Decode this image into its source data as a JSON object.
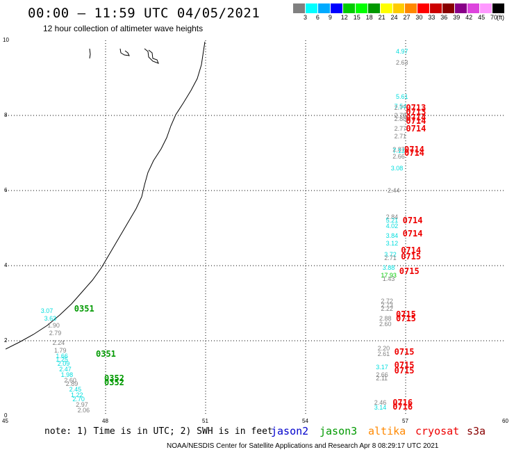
{
  "header": {
    "title": "00:00 — 11:59 UTC 04/05/2021",
    "subtitle": "12 hour collection of altimeter wave heights"
  },
  "legend": {
    "colors": [
      "#808080",
      "#00ffff",
      "#00aaff",
      "#0000ff",
      "#00cc00",
      "#00ff00",
      "#009900",
      "#ffff00",
      "#ffcc00",
      "#ff8800",
      "#ff0000",
      "#cc0000",
      "#880000",
      "#880088",
      "#dd44dd",
      "#ff99ff",
      "#000000"
    ],
    "labels": [
      "3",
      "6",
      "9",
      "12",
      "15",
      "18",
      "21",
      "24",
      "27",
      "30",
      "33",
      "36",
      "39",
      "42",
      "45",
      "70"
    ],
    "unit": "(ft)"
  },
  "axes": {
    "x_ticks": [
      "45",
      "48",
      "51",
      "54",
      "57",
      "60"
    ],
    "y_ticks": [
      "0",
      "2",
      "4",
      "6",
      "8",
      "10"
    ]
  },
  "footer": {
    "note": "note: 1) Time is in UTC; 2) SWH is in feet",
    "missions": [
      {
        "name": "jason2",
        "color": "#0000cc"
      },
      {
        "name": "jason3",
        "color": "#009900"
      },
      {
        "name": "altika",
        "color": "#ff8800"
      },
      {
        "name": "cryosat",
        "color": "#ee0000"
      },
      {
        "name": "s3a",
        "color": "#880000"
      }
    ],
    "credit": "NOAA/NESDIS Center for Satellite Applications and Research   Apr  8 08:29:17 UTC 2021"
  },
  "chart_data": {
    "type": "scatter",
    "xlim": [
      45,
      60
    ],
    "ylim": [
      0,
      10
    ],
    "grid": true,
    "observations": [
      {
        "lon": 57.0,
        "lat": 9.7,
        "v": "4.97",
        "c": "#00dddd"
      },
      {
        "lon": 57.0,
        "lat": 9.4,
        "v": "2.63",
        "c": "#808080"
      },
      {
        "lon": 57.0,
        "lat": 8.5,
        "v": "5.61",
        "c": "#00dddd"
      },
      {
        "lon": 56.95,
        "lat": 8.25,
        "v": "7.54",
        "c": "#00dddd"
      },
      {
        "lon": 56.95,
        "lat": 8.2,
        "v": "2.77",
        "c": "#808080"
      },
      {
        "lon": 56.95,
        "lat": 8.0,
        "v": "2.78",
        "c": "#808080"
      },
      {
        "lon": 56.95,
        "lat": 7.9,
        "v": "2.88",
        "c": "#808080"
      },
      {
        "lon": 56.95,
        "lat": 7.65,
        "v": "2.77",
        "c": "#808080"
      },
      {
        "lon": 56.95,
        "lat": 7.45,
        "v": "2.71",
        "c": "#808080"
      },
      {
        "lon": 56.9,
        "lat": 7.1,
        "v": "2.87",
        "c": "#808080"
      },
      {
        "lon": 56.9,
        "lat": 7.05,
        "v": "7.13",
        "c": "#00dddd"
      },
      {
        "lon": 56.9,
        "lat": 6.9,
        "v": "2.66",
        "c": "#808080"
      },
      {
        "lon": 56.85,
        "lat": 6.6,
        "v": "3.08",
        "c": "#00dddd"
      },
      {
        "lon": 56.75,
        "lat": 6.0,
        "v": "2.44",
        "c": "#808080"
      },
      {
        "lon": 56.7,
        "lat": 5.3,
        "v": "2.84",
        "c": "#808080"
      },
      {
        "lon": 56.7,
        "lat": 5.2,
        "v": "5.21",
        "c": "#00dddd"
      },
      {
        "lon": 56.7,
        "lat": 5.05,
        "v": "4.02",
        "c": "#00dddd"
      },
      {
        "lon": 56.7,
        "lat": 4.8,
        "v": "3.84",
        "c": "#00dddd"
      },
      {
        "lon": 56.7,
        "lat": 4.6,
        "v": "3.12",
        "c": "#00dddd"
      },
      {
        "lon": 56.65,
        "lat": 4.3,
        "v": "3.72",
        "c": "#00dddd"
      },
      {
        "lon": 56.65,
        "lat": 4.2,
        "v": "2.71",
        "c": "#808080"
      },
      {
        "lon": 56.6,
        "lat": 3.95,
        "v": "3.88",
        "c": "#00dddd"
      },
      {
        "lon": 56.55,
        "lat": 3.75,
        "v": "17.93",
        "c": "#00cc00"
      },
      {
        "lon": 56.6,
        "lat": 3.65,
        "v": "1.43",
        "c": "#808080"
      },
      {
        "lon": 56.55,
        "lat": 3.05,
        "v": "2.72",
        "c": "#808080"
      },
      {
        "lon": 56.55,
        "lat": 2.95,
        "v": "2.73",
        "c": "#808080"
      },
      {
        "lon": 56.55,
        "lat": 2.85,
        "v": "2.22",
        "c": "#808080"
      },
      {
        "lon": 56.5,
        "lat": 2.6,
        "v": "2.88",
        "c": "#808080"
      },
      {
        "lon": 56.5,
        "lat": 2.45,
        "v": "2.60",
        "c": "#808080"
      },
      {
        "lon": 56.45,
        "lat": 1.8,
        "v": "2.20",
        "c": "#808080"
      },
      {
        "lon": 56.45,
        "lat": 1.65,
        "v": "2.61",
        "c": "#808080"
      },
      {
        "lon": 56.4,
        "lat": 1.3,
        "v": "3.17",
        "c": "#00dddd"
      },
      {
        "lon": 56.4,
        "lat": 1.1,
        "v": "2.66",
        "c": "#808080"
      },
      {
        "lon": 56.4,
        "lat": 1.0,
        "v": "2.11",
        "c": "#808080"
      },
      {
        "lon": 56.35,
        "lat": 0.35,
        "v": "2.46",
        "c": "#808080"
      },
      {
        "lon": 56.35,
        "lat": 0.22,
        "v": "3.14",
        "c": "#00dddd"
      },
      {
        "lon": 46.35,
        "lat": 2.8,
        "v": "3.07",
        "c": "#00dddd"
      },
      {
        "lon": 46.45,
        "lat": 2.6,
        "v": "3.63",
        "c": "#00dddd"
      },
      {
        "lon": 46.55,
        "lat": 2.4,
        "v": "1.90",
        "c": "#808080"
      },
      {
        "lon": 46.6,
        "lat": 2.2,
        "v": "2.79",
        "c": "#808080"
      },
      {
        "lon": 46.7,
        "lat": 1.95,
        "v": "2.24",
        "c": "#808080"
      },
      {
        "lon": 46.75,
        "lat": 1.75,
        "v": "1.79",
        "c": "#808080"
      },
      {
        "lon": 46.8,
        "lat": 1.6,
        "v": "1.66",
        "c": "#00dddd"
      },
      {
        "lon": 46.8,
        "lat": 1.5,
        "v": "1.25",
        "c": "#00dddd"
      },
      {
        "lon": 46.85,
        "lat": 1.38,
        "v": "2.09",
        "c": "#00dddd"
      },
      {
        "lon": 46.9,
        "lat": 1.25,
        "v": "2.47",
        "c": "#00dddd"
      },
      {
        "lon": 46.95,
        "lat": 1.1,
        "v": "1.98",
        "c": "#00dddd"
      },
      {
        "lon": 47.05,
        "lat": 0.95,
        "v": "2.60",
        "c": "#808080"
      },
      {
        "lon": 47.1,
        "lat": 0.85,
        "v": "2.89",
        "c": "#808080"
      },
      {
        "lon": 47.2,
        "lat": 0.7,
        "v": "2.45",
        "c": "#00dddd"
      },
      {
        "lon": 47.25,
        "lat": 0.55,
        "v": "1.22",
        "c": "#00dddd"
      },
      {
        "lon": 47.3,
        "lat": 0.45,
        "v": "2.70",
        "c": "#00dddd"
      },
      {
        "lon": 47.4,
        "lat": 0.3,
        "v": "2.97",
        "c": "#808080"
      },
      {
        "lon": 47.45,
        "lat": 0.15,
        "v": "2.06",
        "c": "#808080"
      }
    ],
    "pass_times": [
      {
        "lon": 57.05,
        "lat": 8.2,
        "t": "0713",
        "c": "#ee0000"
      },
      {
        "lon": 57.05,
        "lat": 8.1,
        "t": "0713",
        "c": "#ee0000"
      },
      {
        "lon": 57.05,
        "lat": 7.95,
        "t": "0714",
        "c": "#ee0000"
      },
      {
        "lon": 57.05,
        "lat": 7.85,
        "t": "0714",
        "c": "#ee0000"
      },
      {
        "lon": 57.05,
        "lat": 7.65,
        "t": "0714",
        "c": "#ee0000"
      },
      {
        "lon": 57.0,
        "lat": 7.1,
        "t": "0714",
        "c": "#ee0000"
      },
      {
        "lon": 57.0,
        "lat": 7.0,
        "t": "0714",
        "c": "#ee0000"
      },
      {
        "lon": 56.95,
        "lat": 5.2,
        "t": "0714",
        "c": "#ee0000"
      },
      {
        "lon": 56.95,
        "lat": 4.85,
        "t": "0714",
        "c": "#ee0000"
      },
      {
        "lon": 56.9,
        "lat": 4.4,
        "t": "0714",
        "c": "#ee0000"
      },
      {
        "lon": 56.9,
        "lat": 4.25,
        "t": "0715",
        "c": "#ee0000"
      },
      {
        "lon": 56.85,
        "lat": 3.85,
        "t": "0715",
        "c": "#ee0000"
      },
      {
        "lon": 56.75,
        "lat": 2.7,
        "t": "0715",
        "c": "#ee0000"
      },
      {
        "lon": 56.75,
        "lat": 2.6,
        "t": "0715",
        "c": "#ee0000"
      },
      {
        "lon": 56.7,
        "lat": 1.7,
        "t": "0715",
        "c": "#ee0000"
      },
      {
        "lon": 56.7,
        "lat": 1.35,
        "t": "0715",
        "c": "#ee0000"
      },
      {
        "lon": 56.7,
        "lat": 1.2,
        "t": "0715",
        "c": "#ee0000"
      },
      {
        "lon": 56.65,
        "lat": 0.35,
        "t": "0716",
        "c": "#ee0000"
      },
      {
        "lon": 56.65,
        "lat": 0.25,
        "t": "0716",
        "c": "#ee0000"
      },
      {
        "lon": 47.1,
        "lat": 2.85,
        "t": "0351",
        "c": "#009900"
      },
      {
        "lon": 47.75,
        "lat": 1.65,
        "t": "0351",
        "c": "#009900"
      },
      {
        "lon": 48.0,
        "lat": 1.0,
        "t": "0352",
        "c": "#009900"
      },
      {
        "lon": 48.0,
        "lat": 0.88,
        "t": "0352",
        "c": "#009900"
      }
    ]
  }
}
